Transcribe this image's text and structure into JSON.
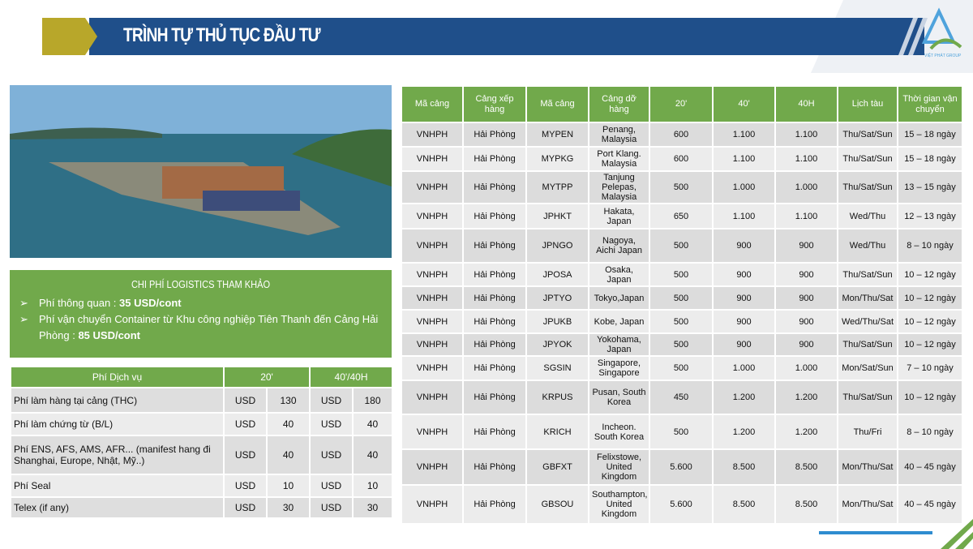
{
  "header": {
    "title": "TRÌNH TỰ THỦ TỤC ĐẦU TƯ",
    "logo": "VIỆT PHÁT GROUP"
  },
  "costs": {
    "title": "CHI PHÍ LOGISTICS THAM KHẢO",
    "items": [
      {
        "label": "Phí thông quan : ",
        "value": "35 USD/cont"
      },
      {
        "label": "Phí vận chuyển Container từ Khu công nghiệp Tiên Thanh đến Cảng Hải Phòng : ",
        "value": "85 USD/cont"
      }
    ]
  },
  "fees": {
    "headers": [
      "Phí Dịch vụ",
      "20'",
      "40'/40H"
    ],
    "rows": [
      [
        "Phí làm hàng tại cảng (THC)",
        "USD",
        "130",
        "USD",
        "180"
      ],
      [
        "Phí làm chứng từ (B/L)",
        "USD",
        "40",
        "USD",
        "40"
      ],
      [
        "Phí ENS, AFS, AMS, AFR... (manifest hang đi Shanghai, Europe, Nhật, Mỹ..)",
        "USD",
        "40",
        "USD",
        "40"
      ],
      [
        "Phí Seal",
        "USD",
        "10",
        "USD",
        "10"
      ],
      [
        "Telex (if any)",
        "USD",
        "30",
        "USD",
        "30"
      ]
    ]
  },
  "routes": {
    "headers": [
      "Mã cảng",
      "Cảng xếp hàng",
      "Mã cảng",
      "Cảng dỡ hàng",
      "20'",
      "40'",
      "40H",
      "Lịch tàu",
      "Thời gian vận chuyển"
    ],
    "rows": [
      [
        "VNHPH",
        "Hải Phòng",
        "MYPEN",
        "Penang, Malaysia",
        "600",
        "1.100",
        "1.100",
        "Thu/Sat/Sun",
        "15 – 18 ngày"
      ],
      [
        "VNHPH",
        "Hải Phòng",
        "MYPKG",
        "Port Klang. Malaysia",
        "600",
        "1.100",
        "1.100",
        "Thu/Sat/Sun",
        "15 – 18 ngày"
      ],
      [
        "VNHPH",
        "Hải Phòng",
        "MYTPP",
        "Tanjung Pelepas, Malaysia",
        "500",
        "1.000",
        "1.000",
        "Thu/Sat/Sun",
        "13 – 15 ngày"
      ],
      [
        "VNHPH",
        "Hải Phòng",
        "JPHKT",
        "Hakata, Japan",
        "650",
        "1.100",
        "1.100",
        "Wed/Thu",
        "12 – 13 ngày"
      ],
      [
        "VNHPH",
        "Hải Phòng",
        "JPNGO",
        "Nagoya, Aichi Japan",
        "500",
        "900",
        "900",
        "Wed/Thu",
        "8 – 10 ngày"
      ],
      [
        "VNHPH",
        "Hải Phòng",
        "JPOSA",
        "Osaka, Japan",
        "500",
        "900",
        "900",
        "Thu/Sat/Sun",
        "10 – 12 ngày"
      ],
      [
        "VNHPH",
        "Hải Phòng",
        "JPTYO",
        "Tokyo,Japan",
        "500",
        "900",
        "900",
        "Mon/Thu/Sat",
        "10 – 12 ngày"
      ],
      [
        "VNHPH",
        "Hải Phòng",
        "JPUKB",
        "Kobe, Japan",
        "500",
        "900",
        "900",
        "Wed/Thu/Sat",
        "10 – 12 ngày"
      ],
      [
        "VNHPH",
        "Hải Phòng",
        "JPYOK",
        "Yokohama, Japan",
        "500",
        "900",
        "900",
        "Thu/Sat/Sun",
        "10 – 12 ngày"
      ],
      [
        "VNHPH",
        "Hải Phòng",
        "SGSIN",
        "Singapore, Singapore",
        "500",
        "1.000",
        "1.000",
        "Mon/Sat/Sun",
        "7 – 10 ngày"
      ],
      [
        "VNHPH",
        "Hải Phòng",
        "KRPUS",
        "Pusan, South Korea",
        "450",
        "1.200",
        "1.200",
        "Thu/Sat/Sun",
        "10 – 12 ngày"
      ],
      [
        "VNHPH",
        "Hải Phòng",
        "KRICH",
        "Incheon. South Korea",
        "500",
        "1.200",
        "1.200",
        "Thu/Fri",
        "8 – 10 ngày"
      ],
      [
        "VNHPH",
        "Hải Phòng",
        "GBFXT",
        "Felixstowe, United Kingdom",
        "5.600",
        "8.500",
        "8.500",
        "Mon/Thu/Sat",
        "40 – 45 ngày"
      ],
      [
        "VNHPH",
        "Hải Phòng",
        "GBSOU",
        "Southampton, United Kingdom",
        "5.600",
        "8.500",
        "8.500",
        "Mon/Thu/Sat",
        "40 – 45 ngày"
      ]
    ]
  }
}
